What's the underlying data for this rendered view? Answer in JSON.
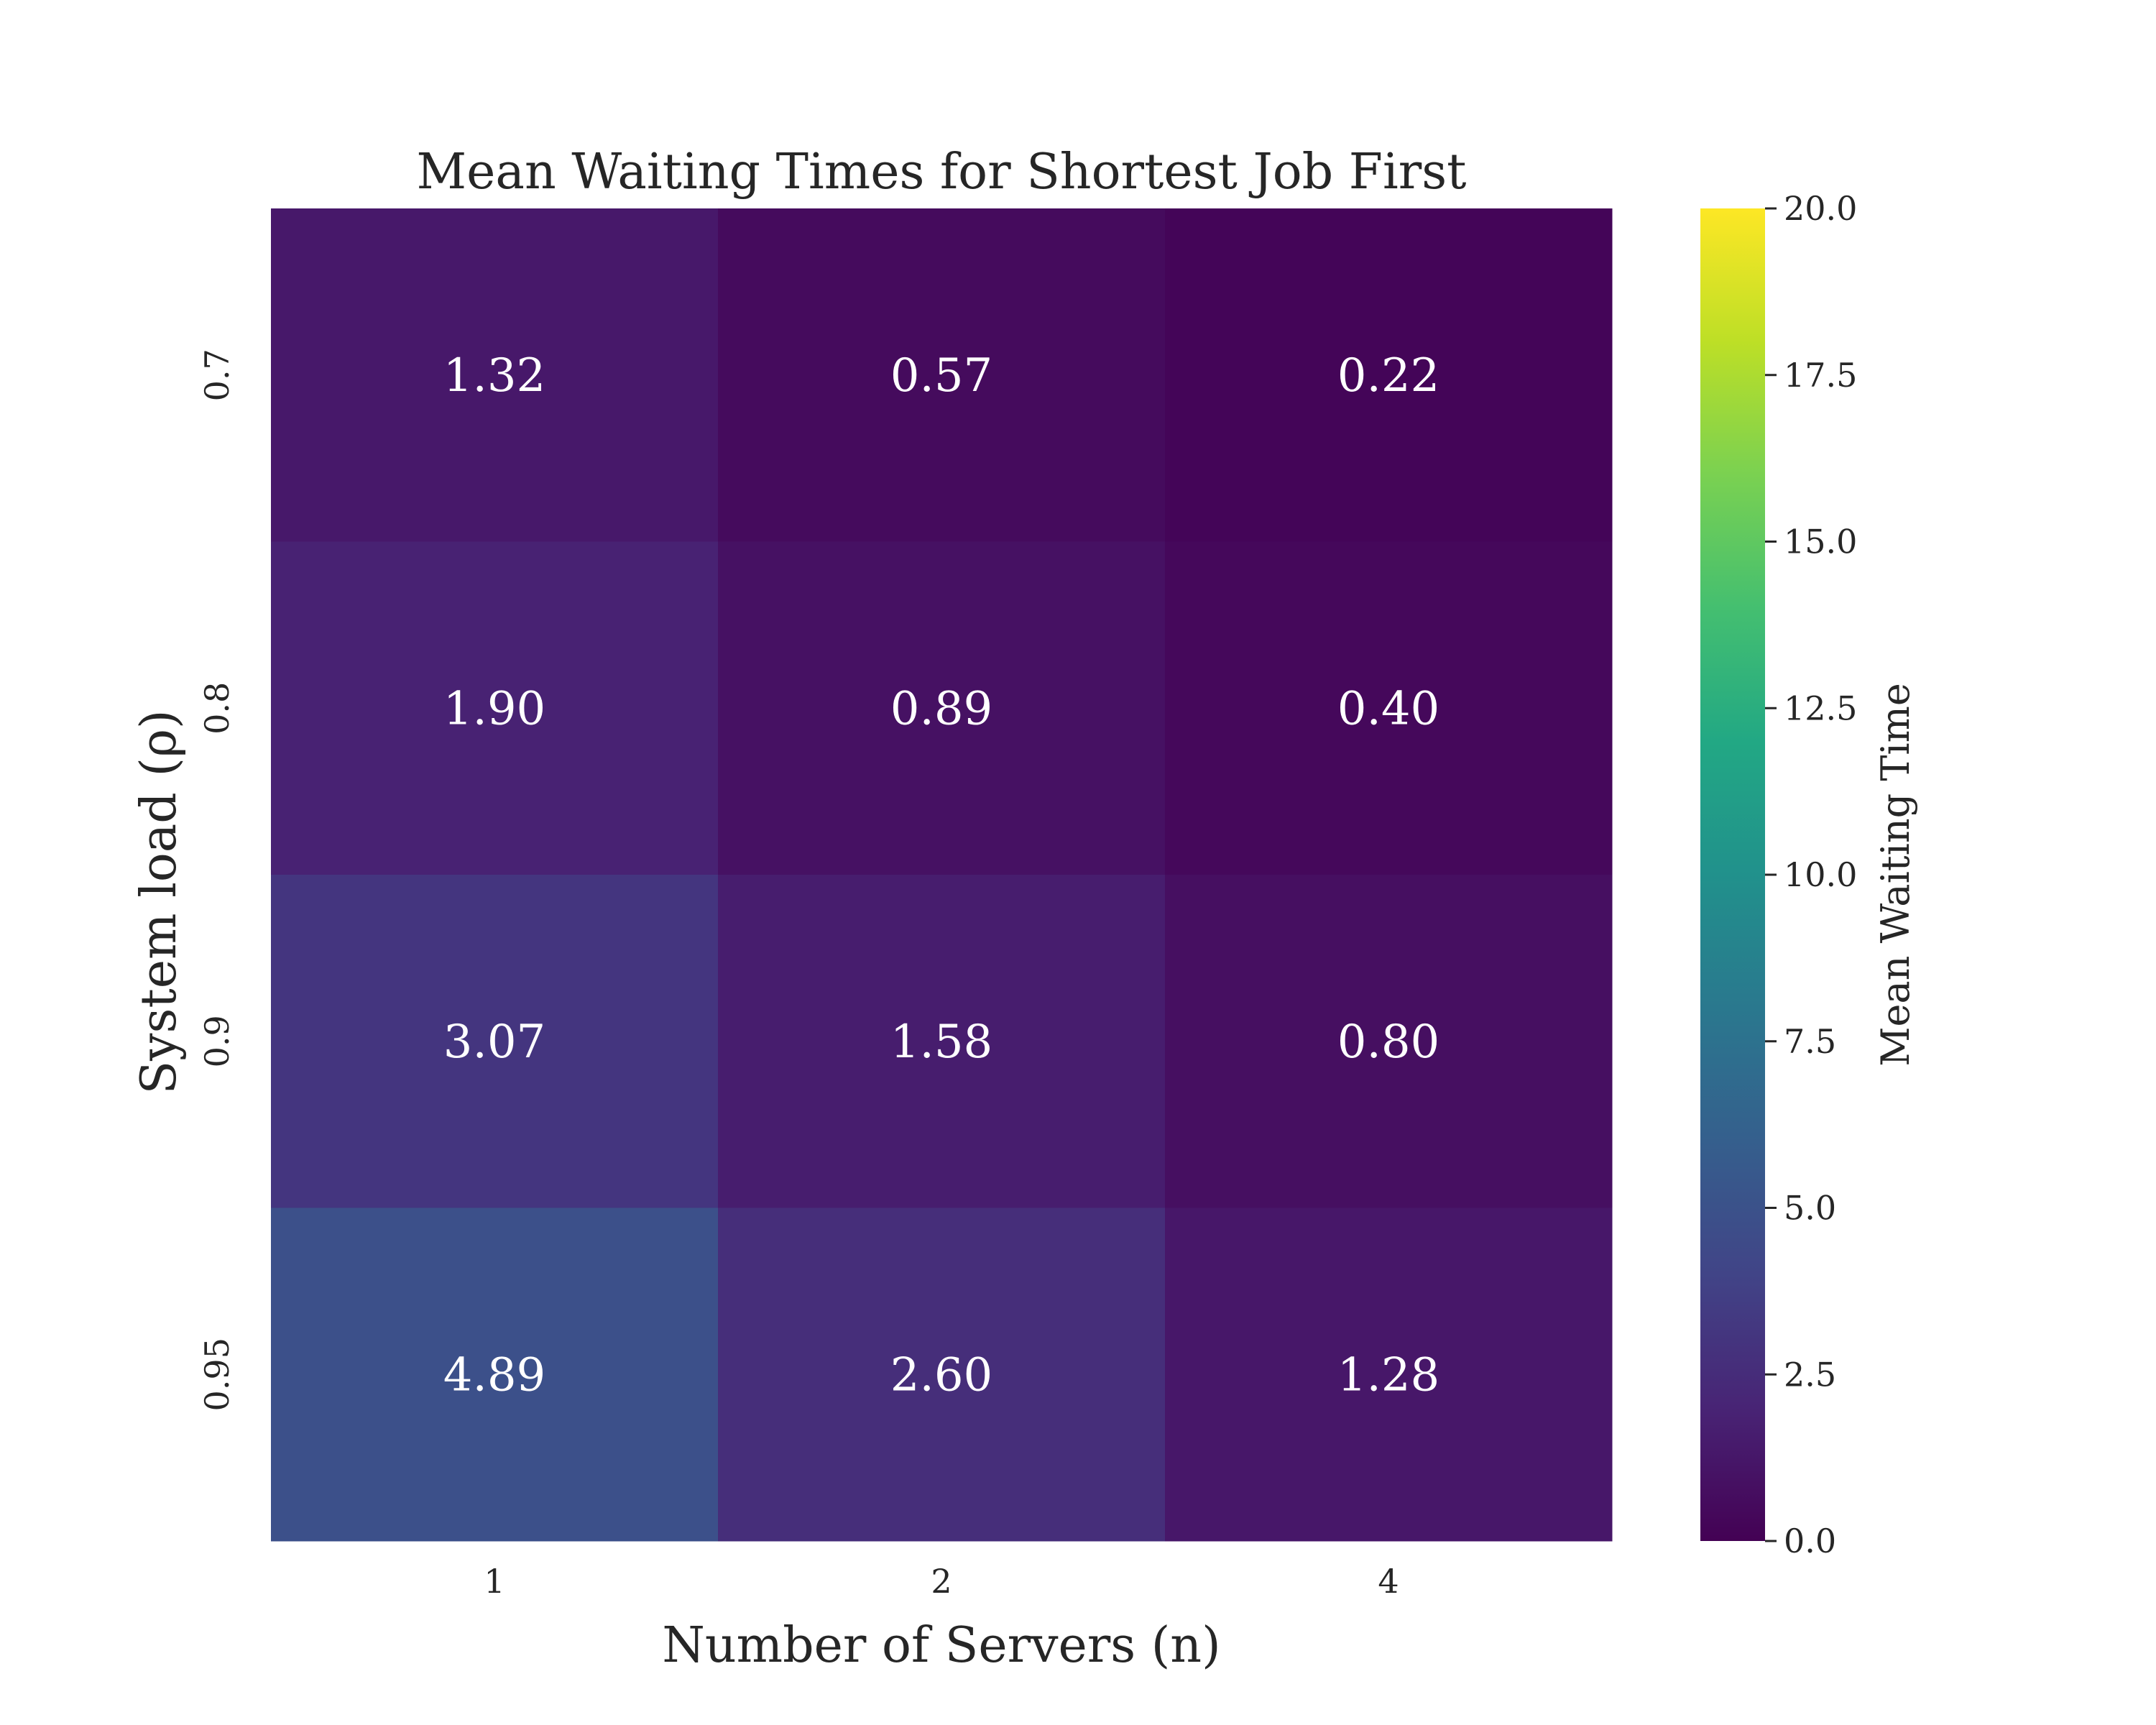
{
  "chart_data": {
    "type": "heatmap",
    "title": "Mean Waiting Times for Shortest Job First",
    "xlabel": "Number of Servers (n)",
    "ylabel": "System load (ρ)",
    "x_categories": [
      "1",
      "2",
      "4"
    ],
    "y_categories": [
      "0.7",
      "0.8",
      "0.9",
      "0.95"
    ],
    "values": [
      [
        1.32,
        0.57,
        0.22
      ],
      [
        1.9,
        0.89,
        0.4
      ],
      [
        3.07,
        1.58,
        0.8
      ],
      [
        4.89,
        2.6,
        1.28
      ]
    ],
    "value_labels": [
      [
        "1.32",
        "0.57",
        "0.22"
      ],
      [
        "1.90",
        "0.89",
        "0.40"
      ],
      [
        "3.07",
        "1.58",
        "0.80"
      ],
      [
        "4.89",
        "2.60",
        "1.28"
      ]
    ],
    "colormap": "viridis",
    "colorbar": {
      "label": "Mean Waiting Time",
      "range": [
        0,
        20
      ],
      "ticks": [
        "0.0",
        "2.5",
        "5.0",
        "7.5",
        "10.0",
        "12.5",
        "15.0",
        "17.5",
        "20.0"
      ]
    }
  }
}
